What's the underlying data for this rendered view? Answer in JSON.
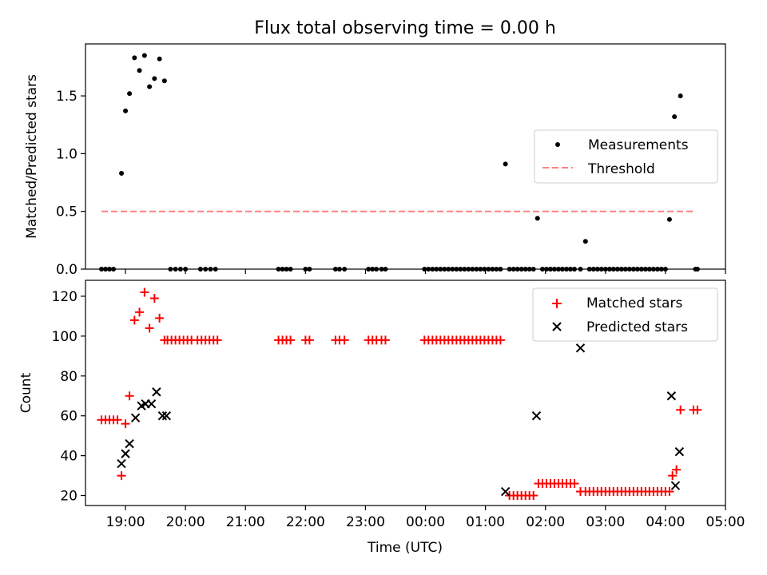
{
  "chart_data": [
    {
      "type": "scatter",
      "title": "Flux total observing time = 0.00 h",
      "xlabel": "",
      "ylabel": "Matched/Predicted stars",
      "xlim": [
        "18:20",
        "29:00"
      ],
      "ylim": [
        0,
        1.95
      ],
      "yticks": [
        0.0,
        0.5,
        1.0,
        1.5
      ],
      "ytick_labels": [
        "0.0",
        "0.5",
        "1.0",
        "1.5"
      ],
      "legend": {
        "placement": "center-right",
        "entries": [
          "Measurements",
          "Threshold"
        ]
      },
      "series": [
        {
          "name": "Measurements",
          "marker": "dot",
          "color": "#000000",
          "x_hours": [
            18.6,
            18.667,
            18.733,
            18.8,
            18.933,
            19.0,
            19.067,
            19.15,
            19.233,
            19.317,
            19.4,
            19.483,
            19.567,
            19.65,
            19.75,
            19.833,
            19.917,
            20.0,
            20.25,
            20.333,
            20.417,
            20.5,
            21.55,
            21.617,
            21.683,
            21.75,
            22.0,
            22.067,
            22.5,
            22.567,
            22.65,
            23.05,
            23.117,
            23.183,
            23.267,
            23.333,
            23.983,
            24.05,
            24.117,
            24.183,
            24.25,
            24.317,
            24.383,
            24.45,
            24.517,
            24.583,
            24.65,
            24.717,
            24.783,
            24.85,
            24.917,
            24.983,
            25.05,
            25.117,
            25.183,
            25.25,
            25.333,
            25.4,
            25.467,
            25.533,
            25.6,
            25.667,
            25.733,
            25.8,
            25.867,
            25.95,
            26.017,
            26.083,
            26.15,
            26.217,
            26.283,
            26.35,
            26.417,
            26.483,
            26.583,
            26.667,
            26.733,
            26.8,
            26.867,
            26.933,
            27.0,
            27.067,
            27.133,
            27.2,
            27.267,
            27.333,
            27.4,
            27.467,
            27.533,
            27.6,
            27.667,
            27.733,
            27.8,
            27.867,
            27.933,
            28.0,
            28.067,
            28.15,
            28.25,
            28.5,
            28.533
          ],
          "y": [
            0.0,
            0.0,
            0.0,
            0.0,
            0.83,
            1.37,
            1.52,
            1.83,
            1.72,
            1.85,
            1.58,
            1.65,
            1.82,
            1.63,
            0.0,
            0.0,
            0.0,
            0.0,
            0.0,
            0.0,
            0.0,
            0.0,
            0.0,
            0.0,
            0.0,
            0.0,
            0.0,
            0.0,
            0.0,
            0.0,
            0.0,
            0.0,
            0.0,
            0.0,
            0.0,
            0.0,
            0.0,
            0.0,
            0.0,
            0.0,
            0.0,
            0.0,
            0.0,
            0.0,
            0.0,
            0.0,
            0.0,
            0.0,
            0.0,
            0.0,
            0.0,
            0.0,
            0.0,
            0.0,
            0.0,
            0.0,
            0.91,
            0.0,
            0.0,
            0.0,
            0.0,
            0.0,
            0.0,
            0.0,
            0.44,
            0.0,
            0.0,
            0.0,
            0.0,
            0.0,
            0.0,
            0.0,
            0.0,
            0.0,
            0.0,
            0.24,
            0.0,
            0.0,
            0.0,
            0.0,
            0.0,
            0.0,
            0.0,
            0.0,
            0.0,
            0.0,
            0.0,
            0.0,
            0.0,
            0.0,
            0.0,
            0.0,
            0.0,
            0.0,
            0.0,
            0.0,
            0.43,
            1.32,
            1.5,
            0.0,
            0.0
          ]
        },
        {
          "name": "Threshold",
          "line": "dashed",
          "color": "#ff7f7f",
          "x_hours": [
            18.6,
            28.5
          ],
          "y": [
            0.5,
            0.5
          ]
        }
      ]
    },
    {
      "type": "scatter",
      "title": "",
      "xlabel": "Time (UTC)",
      "ylabel": "Count",
      "xlim": [
        "18:20",
        "29:00"
      ],
      "ylim": [
        15,
        128
      ],
      "xticks_hours": [
        19,
        20,
        21,
        22,
        23,
        24,
        25,
        26,
        27,
        28,
        29
      ],
      "xtick_labels": [
        "19:00",
        "20:00",
        "21:00",
        "22:00",
        "23:00",
        "00:00",
        "01:00",
        "02:00",
        "03:00",
        "04:00",
        "05:00"
      ],
      "yticks": [
        20,
        40,
        60,
        80,
        100,
        120
      ],
      "ytick_labels": [
        "20",
        "40",
        "60",
        "80",
        "100",
        "120"
      ],
      "legend": {
        "placement": "upper-right",
        "entries": [
          "Matched stars",
          "Predicted stars"
        ]
      },
      "series": [
        {
          "name": "Matched stars",
          "marker": "plus",
          "color": "#ff0000",
          "x_hours": [
            18.6,
            18.667,
            18.733,
            18.8,
            18.867,
            18.933,
            19.0,
            19.067,
            19.15,
            19.233,
            19.317,
            19.4,
            19.483,
            19.567,
            19.65,
            19.7,
            19.767,
            19.833,
            19.9,
            19.967,
            20.033,
            20.1,
            20.2,
            20.267,
            20.333,
            20.4,
            20.467,
            20.533,
            21.55,
            21.617,
            21.683,
            21.75,
            22.0,
            22.067,
            22.5,
            22.567,
            22.65,
            23.05,
            23.117,
            23.183,
            23.267,
            23.333,
            23.983,
            24.05,
            24.117,
            24.183,
            24.25,
            24.317,
            24.383,
            24.45,
            24.517,
            24.583,
            24.65,
            24.717,
            24.783,
            24.85,
            24.917,
            24.983,
            25.05,
            25.117,
            25.183,
            25.25,
            25.4,
            25.467,
            25.533,
            25.6,
            25.667,
            25.733,
            25.8,
            25.883,
            25.95,
            26.017,
            26.083,
            26.15,
            26.217,
            26.283,
            26.35,
            26.417,
            26.483,
            26.583,
            26.667,
            26.733,
            26.8,
            26.867,
            26.933,
            27.0,
            27.067,
            27.133,
            27.2,
            27.267,
            27.333,
            27.4,
            27.467,
            27.533,
            27.6,
            27.667,
            27.733,
            27.8,
            27.867,
            27.933,
            28.0,
            28.067,
            28.117,
            28.183,
            28.25,
            28.467,
            28.533
          ],
          "y": [
            58,
            58,
            58,
            58,
            58,
            30,
            56,
            70,
            108,
            112,
            122,
            104,
            119,
            109,
            98,
            98,
            98,
            98,
            98,
            98,
            98,
            98,
            98,
            98,
            98,
            98,
            98,
            98,
            98,
            98,
            98,
            98,
            98,
            98,
            98,
            98,
            98,
            98,
            98,
            98,
            98,
            98,
            98,
            98,
            98,
            98,
            98,
            98,
            98,
            98,
            98,
            98,
            98,
            98,
            98,
            98,
            98,
            98,
            98,
            98,
            98,
            98,
            20,
            20,
            20,
            20,
            20,
            20,
            20,
            26,
            26,
            26,
            26,
            26,
            26,
            26,
            26,
            26,
            26,
            22,
            22,
            22,
            22,
            22,
            22,
            22,
            22,
            22,
            22,
            22,
            22,
            22,
            22,
            22,
            22,
            22,
            22,
            22,
            22,
            22,
            22,
            22,
            30,
            33,
            63,
            63,
            63
          ]
        },
        {
          "name": "Predicted stars",
          "marker": "x",
          "color": "#000000",
          "x_hours": [
            18.933,
            19.0,
            19.067,
            19.167,
            19.267,
            19.333,
            19.433,
            19.517,
            19.617,
            19.683,
            25.333,
            25.85,
            26.583,
            28.1,
            28.167,
            28.233
          ],
          "y": [
            36,
            41,
            46,
            59,
            65,
            66,
            66,
            72,
            60,
            60,
            22,
            60,
            94,
            70,
            25,
            42
          ]
        }
      ]
    }
  ]
}
